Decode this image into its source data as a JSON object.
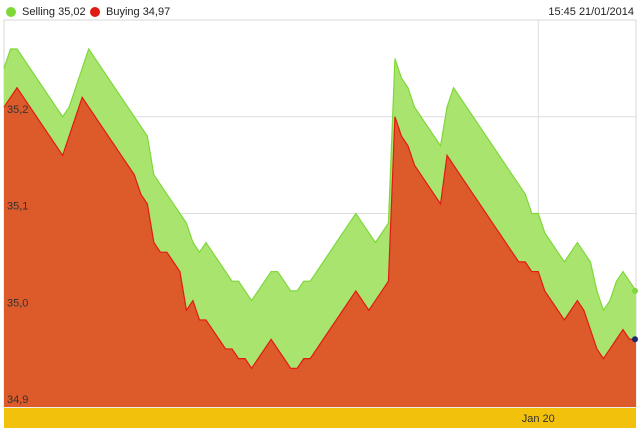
{
  "legend": {
    "selling": {
      "label": "Selling 35,02",
      "color": "#7fd83a"
    },
    "buying": {
      "label": "Buying 34,97",
      "color": "#e21a14"
    }
  },
  "timestamp": "15:45 21/01/2014",
  "chart_data": {
    "type": "area",
    "ylim": [
      34.9,
      35.3
    ],
    "y_ticks": [
      {
        "value": 35.2,
        "label": "35,2"
      },
      {
        "value": 35.1,
        "label": "35,1"
      },
      {
        "value": 35.0,
        "label": "35,0"
      },
      {
        "value": 34.9,
        "label": "34,9"
      }
    ],
    "x_ticks": [
      {
        "index": 82,
        "label": "Jan 20"
      }
    ],
    "grid": true,
    "legend_position": "top-left",
    "fill_colors": {
      "selling": "#a9e46e",
      "buying": "#dd5a2a"
    },
    "series": [
      {
        "name": "Selling",
        "color": "#7fd83a",
        "values": [
          35.25,
          35.27,
          35.27,
          35.26,
          35.25,
          35.24,
          35.23,
          35.22,
          35.21,
          35.2,
          35.21,
          35.23,
          35.25,
          35.27,
          35.26,
          35.25,
          35.24,
          35.23,
          35.22,
          35.21,
          35.2,
          35.19,
          35.18,
          35.14,
          35.13,
          35.12,
          35.11,
          35.1,
          35.09,
          35.07,
          35.06,
          35.07,
          35.06,
          35.05,
          35.04,
          35.03,
          35.03,
          35.02,
          35.01,
          35.02,
          35.03,
          35.04,
          35.04,
          35.03,
          35.02,
          35.02,
          35.03,
          35.03,
          35.04,
          35.05,
          35.06,
          35.07,
          35.08,
          35.09,
          35.1,
          35.09,
          35.08,
          35.07,
          35.08,
          35.09,
          35.26,
          35.24,
          35.23,
          35.21,
          35.2,
          35.19,
          35.18,
          35.17,
          35.21,
          35.23,
          35.22,
          35.21,
          35.2,
          35.19,
          35.18,
          35.17,
          35.16,
          35.15,
          35.14,
          35.13,
          35.12,
          35.1,
          35.1,
          35.08,
          35.07,
          35.06,
          35.05,
          35.06,
          35.07,
          35.06,
          35.05,
          35.02,
          35.0,
          35.01,
          35.03,
          35.04,
          35.03,
          35.02
        ],
        "last_marker": {
          "value": 35.02,
          "color": "#7fd83a"
        }
      },
      {
        "name": "Buying",
        "color": "#e21a14",
        "values": [
          35.21,
          35.22,
          35.23,
          35.22,
          35.21,
          35.2,
          35.19,
          35.18,
          35.17,
          35.16,
          35.18,
          35.2,
          35.22,
          35.21,
          35.2,
          35.19,
          35.18,
          35.17,
          35.16,
          35.15,
          35.14,
          35.12,
          35.11,
          35.07,
          35.06,
          35.06,
          35.05,
          35.04,
          35.0,
          35.01,
          34.99,
          34.99,
          34.98,
          34.97,
          34.96,
          34.96,
          34.95,
          34.95,
          34.94,
          34.95,
          34.96,
          34.97,
          34.96,
          34.95,
          34.94,
          34.94,
          34.95,
          34.95,
          34.96,
          34.97,
          34.98,
          34.99,
          35.0,
          35.01,
          35.02,
          35.01,
          35.0,
          35.01,
          35.02,
          35.03,
          35.2,
          35.18,
          35.17,
          35.15,
          35.14,
          35.13,
          35.12,
          35.11,
          35.16,
          35.15,
          35.14,
          35.13,
          35.12,
          35.11,
          35.1,
          35.09,
          35.08,
          35.07,
          35.06,
          35.05,
          35.05,
          35.04,
          35.04,
          35.02,
          35.01,
          35.0,
          34.99,
          35.0,
          35.01,
          35.0,
          34.98,
          34.96,
          34.95,
          34.96,
          34.97,
          34.98,
          34.97,
          34.97
        ],
        "last_marker": {
          "value": 34.97,
          "color": "#1b2a6b"
        }
      }
    ]
  }
}
